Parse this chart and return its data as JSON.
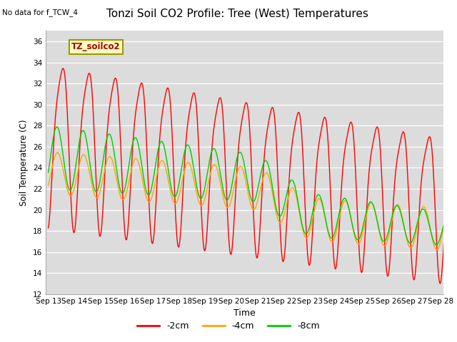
{
  "title": "Tonzi Soil CO2 Profile: Tree (West) Temperatures",
  "no_data_label": "No data for f_TCW_4",
  "ylabel": "Soil Temperature (C)",
  "xlabel": "Time",
  "legend_box_label": "TZ_soilco2",
  "ylim": [
    12,
    37
  ],
  "yticks": [
    12,
    14,
    16,
    18,
    20,
    22,
    24,
    26,
    28,
    30,
    32,
    34,
    36
  ],
  "bg_color": "#dcdcdc",
  "fig_color": "#ffffff",
  "series_colors": [
    "#ff0000",
    "#ffa500",
    "#00cc00"
  ],
  "series_labels": [
    "-2cm",
    "-4cm",
    "-8cm"
  ],
  "x_tick_labels": [
    "Sep 13",
    "Sep 14",
    "Sep 15",
    "Sep 16",
    "Sep 17",
    "Sep 18",
    "Sep 19",
    "Sep 20",
    "Sep 21",
    "Sep 22",
    "Sep 23",
    "Sep 24",
    "Sep 25",
    "Sep 26",
    "Sep 27",
    "Sep 28"
  ],
  "num_days": 16
}
